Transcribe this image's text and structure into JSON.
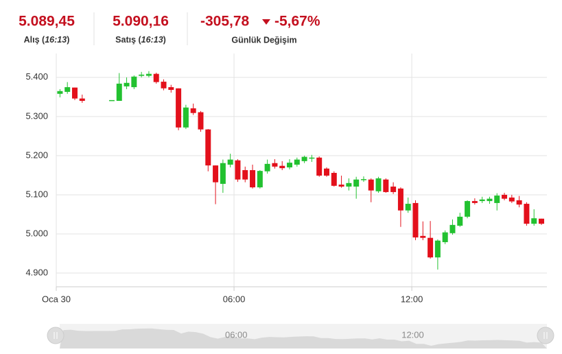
{
  "header": {
    "bid": {
      "value": "5.089,45",
      "caption": [
        "Alış (",
        "16:13",
        ")"
      ]
    },
    "ask": {
      "value": "5.090,16",
      "caption": [
        "Satış (",
        "16:13",
        ")"
      ]
    },
    "change": {
      "value": "-305,78",
      "percent": "-5,67%",
      "caption": "Günlük Değişim"
    }
  },
  "chart_data": {
    "type": "candlestick",
    "up_color": "#22c130",
    "down_color": "#e3101b",
    "grid": true,
    "x": [
      0,
      0.25,
      0.5,
      0.75,
      1.75,
      2,
      2.25,
      2.5,
      2.75,
      3,
      3.25,
      3.5,
      3.75,
      4,
      4.25,
      4.5,
      4.75,
      5,
      5.25,
      5.5,
      5.75,
      6,
      6.25,
      6.5,
      6.75,
      7,
      7.25,
      7.5,
      7.75,
      8,
      8.25,
      8.5,
      8.75,
      9,
      9.25,
      9.5,
      9.75,
      10,
      10.25,
      10.5,
      10.75,
      11,
      11.25,
      11.5,
      11.75,
      12,
      12.25,
      12.5,
      12.75,
      13,
      13.25,
      13.5,
      13.75,
      14,
      14.25,
      14.5,
      14.75,
      15,
      15.25,
      15.5,
      15.75,
      16,
      16.25
    ],
    "open": [
      5358,
      5363,
      5374,
      5346,
      5342,
      5340,
      5377,
      5375,
      5404,
      5404,
      5409,
      5389,
      5375,
      5372,
      5272,
      5321,
      5311,
      5267,
      5175,
      5128,
      5177,
      5188,
      5163,
      5163,
      5119,
      5160,
      5181,
      5174,
      5170,
      5177,
      5186,
      5193,
      5195,
      5167,
      5156,
      5126,
      5121,
      5121,
      5139,
      5139,
      5109,
      5139,
      5121,
      5116,
      5060,
      5079,
      4995,
      4990,
      4940,
      4979,
      5002,
      5021,
      5044,
      5084,
      5084,
      5084,
      5079,
      5100,
      5093,
      5086,
      5077,
      5026,
      5039
    ],
    "high": [
      5370,
      5388,
      5374,
      5356,
      5342,
      5411,
      5400,
      5405,
      5414,
      5416,
      5412,
      5395,
      5381,
      5372,
      5330,
      5333,
      5314,
      5268,
      5175,
      5190,
      5205,
      5191,
      5172,
      5177,
      5163,
      5190,
      5191,
      5186,
      5191,
      5195,
      5200,
      5202,
      5198,
      5170,
      5160,
      5149,
      5142,
      5146,
      5147,
      5142,
      5146,
      5142,
      5132,
      5119,
      5093,
      5086,
      5032,
      5033,
      4986,
      5009,
      5037,
      5054,
      5086,
      5091,
      5095,
      5095,
      5104,
      5105,
      5100,
      5097,
      5081,
      5063,
      5039
    ],
    "low": [
      5349,
      5358,
      5342,
      5335,
      5342,
      5340,
      5370,
      5370,
      5400,
      5400,
      5384,
      5367,
      5361,
      5265,
      5268,
      5304,
      5261,
      5160,
      5076,
      5105,
      5170,
      5133,
      5132,
      5116,
      5116,
      5154,
      5167,
      5163,
      5165,
      5172,
      5181,
      5184,
      5146,
      5146,
      5121,
      5118,
      5111,
      5090,
      5133,
      5081,
      5105,
      5105,
      5102,
      5018,
      5054,
      4984,
      4984,
      4937,
      4909,
      4974,
      4998,
      5018,
      5040,
      5075,
      5079,
      5077,
      5060,
      5086,
      5079,
      5068,
      5021,
      5021,
      5023
    ],
    "close": [
      5365,
      5375,
      5346,
      5340,
      5342,
      5384,
      5386,
      5402,
      5407,
      5409,
      5388,
      5372,
      5368,
      5272,
      5323,
      5309,
      5267,
      5175,
      5132,
      5181,
      5190,
      5139,
      5139,
      5119,
      5161,
      5179,
      5172,
      5168,
      5182,
      5190,
      5197,
      5195,
      5149,
      5149,
      5123,
      5121,
      5130,
      5139,
      5140,
      5111,
      5142,
      5107,
      5107,
      5060,
      5077,
      4991,
      4990,
      4940,
      4983,
      5004,
      5023,
      5044,
      5084,
      5079,
      5088,
      5090,
      5098,
      5090,
      5083,
      5075,
      5026,
      5040,
      5026
    ],
    "xlim": [
      0,
      16.56
    ],
    "xticks": [
      {
        "value": 0,
        "label": "Oca 30"
      },
      {
        "value": 6,
        "label": "06:00"
      },
      {
        "value": 12,
        "label": "12:00"
      }
    ],
    "ylim": [
      4865,
      5461
    ],
    "yticks": [
      {
        "value": 4900,
        "label": "4.900"
      },
      {
        "value": 5000,
        "label": "5.000"
      },
      {
        "value": 5100,
        "label": "5.100"
      },
      {
        "value": 5200,
        "label": "5.200"
      },
      {
        "value": 5300,
        "label": "5.300"
      },
      {
        "value": 5400,
        "label": "5.400"
      }
    ]
  }
}
